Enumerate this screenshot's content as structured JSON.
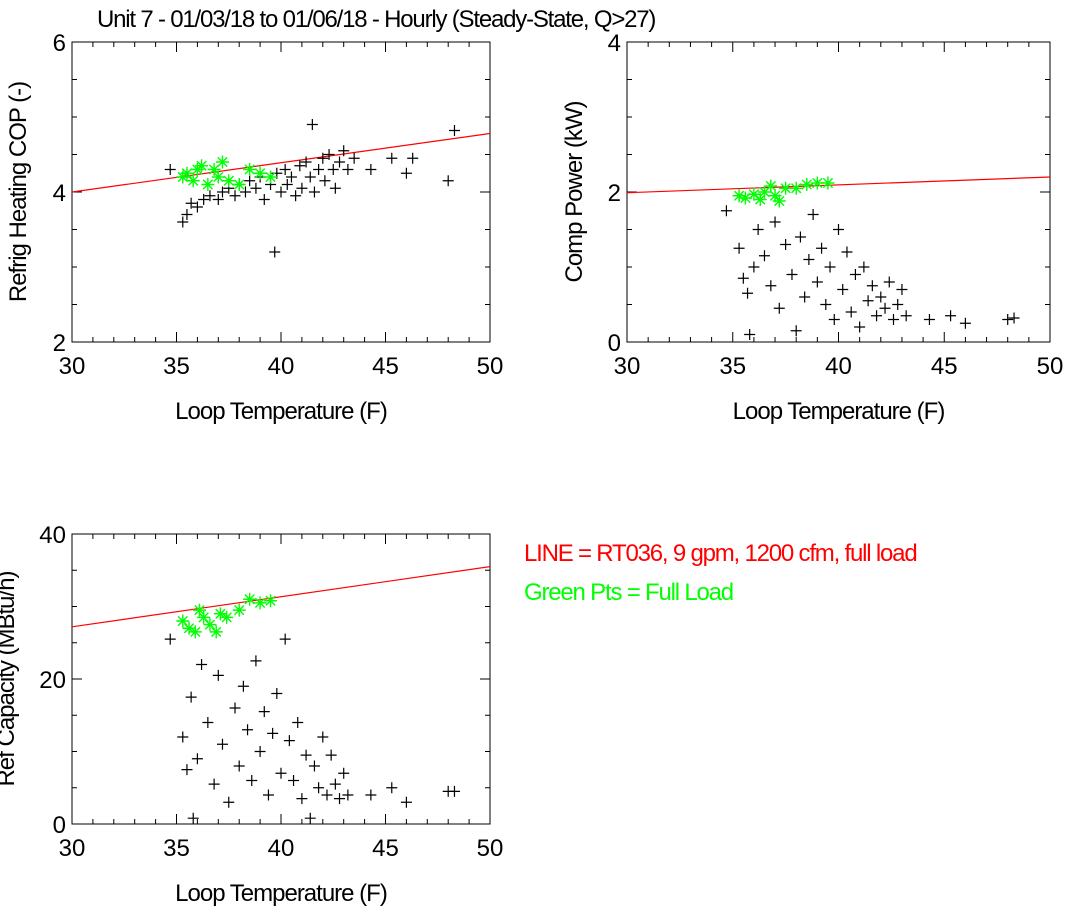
{
  "title": "Unit 7 - 01/03/18 to 01/06/18 - Hourly (Steady-State, Q>27)",
  "colors": {
    "line": "#ff0000",
    "full_load": "#00ff00",
    "points": "#000000",
    "axes": "#000000"
  },
  "annotations": [
    {
      "text": "LINE = RT036, 9 gpm, 1200 cfm, full load",
      "color": "#ff0000"
    },
    {
      "text": "Green Pts = Full Load",
      "color": "#00ff00"
    }
  ],
  "chart_data": [
    {
      "type": "scatter",
      "xlabel": "Loop Temperature (F)",
      "ylabel": "Refrig Heating COP (-)",
      "xlim": [
        30,
        50
      ],
      "ylim": [
        2,
        6
      ],
      "xticks": [
        "30",
        "35",
        "40",
        "45",
        "50"
      ],
      "yticks": [
        "2",
        "4",
        "6"
      ],
      "line": {
        "x": [
          30,
          50
        ],
        "y": [
          4.0,
          4.78
        ]
      },
      "series": [
        {
          "marker": "plus",
          "color": "#000000",
          "points": [
            [
              34.7,
              4.3
            ],
            [
              35.3,
              3.6
            ],
            [
              35.5,
              3.7
            ],
            [
              35.7,
              3.85
            ],
            [
              36.0,
              3.8
            ],
            [
              36.3,
              3.9
            ],
            [
              36.6,
              3.95
            ],
            [
              37.0,
              3.9
            ],
            [
              37.2,
              4.0
            ],
            [
              37.5,
              4.05
            ],
            [
              37.8,
              3.95
            ],
            [
              38.0,
              4.1
            ],
            [
              38.3,
              4.0
            ],
            [
              38.5,
              4.15
            ],
            [
              38.8,
              4.05
            ],
            [
              39.0,
              4.2
            ],
            [
              39.2,
              3.9
            ],
            [
              39.5,
              4.1
            ],
            [
              39.7,
              3.2
            ],
            [
              39.8,
              4.25
            ],
            [
              40.0,
              4.0
            ],
            [
              40.2,
              4.3
            ],
            [
              40.3,
              4.1
            ],
            [
              40.5,
              4.2
            ],
            [
              40.7,
              3.95
            ],
            [
              40.9,
              4.35
            ],
            [
              41.0,
              4.05
            ],
            [
              41.2,
              4.4
            ],
            [
              41.4,
              4.2
            ],
            [
              41.5,
              4.9
            ],
            [
              41.6,
              4.0
            ],
            [
              41.8,
              4.3
            ],
            [
              42.0,
              4.45
            ],
            [
              42.1,
              4.15
            ],
            [
              42.3,
              4.5
            ],
            [
              42.5,
              4.3
            ],
            [
              42.6,
              4.05
            ],
            [
              42.8,
              4.4
            ],
            [
              43.0,
              4.55
            ],
            [
              43.2,
              4.3
            ],
            [
              43.5,
              4.45
            ],
            [
              44.3,
              4.3
            ],
            [
              45.3,
              4.45
            ],
            [
              46.0,
              4.25
            ],
            [
              46.3,
              4.45
            ],
            [
              48.0,
              4.15
            ],
            [
              48.3,
              4.82
            ]
          ]
        },
        {
          "marker": "star",
          "color": "#00ff00",
          "points": [
            [
              35.3,
              4.2
            ],
            [
              35.5,
              4.25
            ],
            [
              35.8,
              4.15
            ],
            [
              36.0,
              4.3
            ],
            [
              36.2,
              4.35
            ],
            [
              36.5,
              4.1
            ],
            [
              36.8,
              4.3
            ],
            [
              37.0,
              4.2
            ],
            [
              37.2,
              4.4
            ],
            [
              37.5,
              4.15
            ],
            [
              38.0,
              4.1
            ],
            [
              38.5,
              4.3
            ],
            [
              39.0,
              4.25
            ],
            [
              39.5,
              4.2
            ]
          ]
        }
      ]
    },
    {
      "type": "scatter",
      "xlabel": "Loop Temperature (F)",
      "ylabel": "Comp Power (kW)",
      "xlim": [
        30,
        50
      ],
      "ylim": [
        0,
        4
      ],
      "xticks": [
        "30",
        "35",
        "40",
        "45",
        "50"
      ],
      "yticks": [
        "0",
        "2",
        "4"
      ],
      "line": {
        "x": [
          30,
          50
        ],
        "y": [
          1.99,
          2.2
        ]
      },
      "series": [
        {
          "marker": "plus",
          "color": "#000000",
          "points": [
            [
              34.7,
              1.75
            ],
            [
              35.3,
              1.25
            ],
            [
              35.5,
              0.85
            ],
            [
              35.7,
              0.65
            ],
            [
              35.8,
              0.1
            ],
            [
              36.0,
              1.0
            ],
            [
              36.2,
              1.5
            ],
            [
              36.5,
              1.15
            ],
            [
              36.8,
              0.75
            ],
            [
              37.0,
              1.6
            ],
            [
              37.2,
              0.45
            ],
            [
              37.5,
              1.3
            ],
            [
              37.8,
              0.9
            ],
            [
              38.0,
              0.15
            ],
            [
              38.2,
              1.4
            ],
            [
              38.4,
              0.6
            ],
            [
              38.6,
              1.1
            ],
            [
              38.8,
              1.7
            ],
            [
              39.0,
              0.8
            ],
            [
              39.2,
              1.25
            ],
            [
              39.4,
              0.5
            ],
            [
              39.6,
              1.0
            ],
            [
              39.8,
              0.3
            ],
            [
              40.0,
              1.5
            ],
            [
              40.2,
              0.7
            ],
            [
              40.4,
              1.2
            ],
            [
              40.6,
              0.4
            ],
            [
              40.8,
              0.9
            ],
            [
              41.0,
              0.2
            ],
            [
              41.2,
              1.0
            ],
            [
              41.4,
              0.55
            ],
            [
              41.6,
              0.75
            ],
            [
              41.8,
              0.35
            ],
            [
              42.0,
              0.6
            ],
            [
              42.2,
              0.45
            ],
            [
              42.4,
              0.8
            ],
            [
              42.6,
              0.3
            ],
            [
              42.8,
              0.5
            ],
            [
              43.0,
              0.7
            ],
            [
              43.2,
              0.35
            ],
            [
              44.3,
              0.3
            ],
            [
              45.3,
              0.35
            ],
            [
              46.0,
              0.25
            ],
            [
              48.0,
              0.3
            ],
            [
              48.3,
              0.32
            ]
          ]
        },
        {
          "marker": "star",
          "color": "#00ff00",
          "points": [
            [
              35.3,
              1.95
            ],
            [
              35.6,
              1.92
            ],
            [
              36.0,
              1.97
            ],
            [
              36.3,
              1.9
            ],
            [
              36.5,
              2.0
            ],
            [
              36.8,
              2.08
            ],
            [
              37.0,
              1.95
            ],
            [
              37.2,
              1.88
            ],
            [
              37.5,
              2.05
            ],
            [
              38.0,
              2.05
            ],
            [
              38.5,
              2.1
            ],
            [
              39.0,
              2.12
            ],
            [
              39.5,
              2.12
            ]
          ]
        }
      ]
    },
    {
      "type": "scatter",
      "xlabel": "Loop Temperature (F)",
      "ylabel": "Ref Capacity (MBtu/h)",
      "xlim": [
        30,
        50
      ],
      "ylim": [
        0,
        40
      ],
      "xticks": [
        "30",
        "35",
        "40",
        "45",
        "50"
      ],
      "yticks": [
        "0",
        "20",
        "40"
      ],
      "line": {
        "x": [
          30,
          50
        ],
        "y": [
          27.2,
          35.5
        ]
      },
      "series": [
        {
          "marker": "plus",
          "color": "#000000",
          "points": [
            [
              34.7,
              25.5
            ],
            [
              35.3,
              12.0
            ],
            [
              35.5,
              7.5
            ],
            [
              35.7,
              17.5
            ],
            [
              35.8,
              0.8
            ],
            [
              36.0,
              9.0
            ],
            [
              36.2,
              22.0
            ],
            [
              36.5,
              14.0
            ],
            [
              36.8,
              5.5
            ],
            [
              37.0,
              20.5
            ],
            [
              37.2,
              11.0
            ],
            [
              37.5,
              3.0
            ],
            [
              37.8,
              16.0
            ],
            [
              38.0,
              8.0
            ],
            [
              38.2,
              19.0
            ],
            [
              38.4,
              13.0
            ],
            [
              38.6,
              6.0
            ],
            [
              38.8,
              22.5
            ],
            [
              39.0,
              10.0
            ],
            [
              39.2,
              15.5
            ],
            [
              39.4,
              4.0
            ],
            [
              39.6,
              12.5
            ],
            [
              39.8,
              18.0
            ],
            [
              40.0,
              7.0
            ],
            [
              40.2,
              25.5
            ],
            [
              40.4,
              11.5
            ],
            [
              40.6,
              6.0
            ],
            [
              40.8,
              14.0
            ],
            [
              41.0,
              3.5
            ],
            [
              41.2,
              9.5
            ],
            [
              41.4,
              0.8
            ],
            [
              41.6,
              8.0
            ],
            [
              41.8,
              5.0
            ],
            [
              42.0,
              12.0
            ],
            [
              42.2,
              4.0
            ],
            [
              42.4,
              9.5
            ],
            [
              42.6,
              5.5
            ],
            [
              42.8,
              3.5
            ],
            [
              43.0,
              7.0
            ],
            [
              43.2,
              4.0
            ],
            [
              44.3,
              4.0
            ],
            [
              45.3,
              5.0
            ],
            [
              46.0,
              3.0
            ],
            [
              48.0,
              4.5
            ],
            [
              48.3,
              4.5
            ]
          ]
        },
        {
          "marker": "star",
          "color": "#00ff00",
          "points": [
            [
              35.3,
              28.0
            ],
            [
              35.6,
              27.0
            ],
            [
              35.9,
              26.5
            ],
            [
              36.1,
              29.5
            ],
            [
              36.3,
              28.5
            ],
            [
              36.6,
              27.5
            ],
            [
              36.9,
              26.5
            ],
            [
              37.1,
              29.0
            ],
            [
              37.4,
              28.5
            ],
            [
              38.0,
              29.5
            ],
            [
              38.5,
              31.0
            ],
            [
              39.0,
              30.5
            ],
            [
              39.5,
              30.8
            ]
          ]
        }
      ]
    }
  ]
}
